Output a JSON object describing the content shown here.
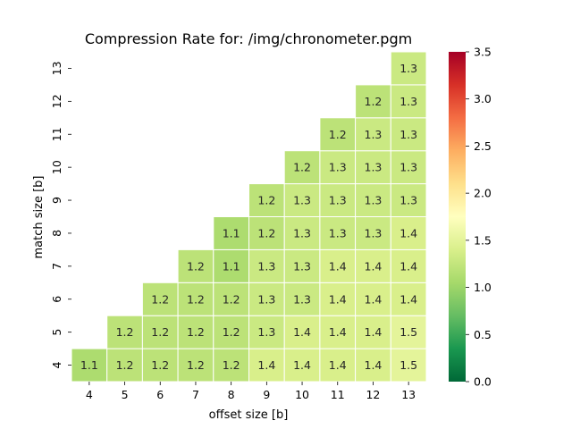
{
  "chart_data": {
    "type": "heatmap",
    "title": "Compression Rate for: /img/chronometer.pgm",
    "xlabel": "offset size [b]",
    "ylabel": "match size [b]",
    "x": [
      4,
      5,
      6,
      7,
      8,
      9,
      10,
      11,
      12,
      13
    ],
    "y": [
      4,
      5,
      6,
      7,
      8,
      9,
      10,
      11,
      12,
      13
    ],
    "colorbar": {
      "min": 0.0,
      "max": 3.5,
      "ticks": [
        "0.0",
        "0.5",
        "1.0",
        "1.5",
        "2.0",
        "2.5",
        "3.0",
        "3.5"
      ],
      "colormap": "RdYlGn_r"
    },
    "grid": false,
    "values": [
      [
        1.1,
        1.2,
        1.2,
        1.2,
        1.2,
        1.4,
        1.4,
        1.4,
        1.4,
        1.5
      ],
      [
        null,
        1.2,
        1.2,
        1.2,
        1.2,
        1.3,
        1.4,
        1.4,
        1.4,
        1.5
      ],
      [
        null,
        null,
        1.2,
        1.2,
        1.2,
        1.3,
        1.3,
        1.4,
        1.4,
        1.4
      ],
      [
        null,
        null,
        null,
        1.2,
        1.1,
        1.3,
        1.3,
        1.4,
        1.4,
        1.4
      ],
      [
        null,
        null,
        null,
        null,
        1.1,
        1.2,
        1.3,
        1.3,
        1.3,
        1.4
      ],
      [
        null,
        null,
        null,
        null,
        null,
        1.2,
        1.3,
        1.3,
        1.3,
        1.3
      ],
      [
        null,
        null,
        null,
        null,
        null,
        null,
        1.2,
        1.3,
        1.3,
        1.3
      ],
      [
        null,
        null,
        null,
        null,
        null,
        null,
        null,
        1.2,
        1.3,
        1.3
      ],
      [
        null,
        null,
        null,
        null,
        null,
        null,
        null,
        null,
        1.2,
        1.3
      ],
      [
        null,
        null,
        null,
        null,
        null,
        null,
        null,
        null,
        null,
        1.3
      ]
    ]
  }
}
